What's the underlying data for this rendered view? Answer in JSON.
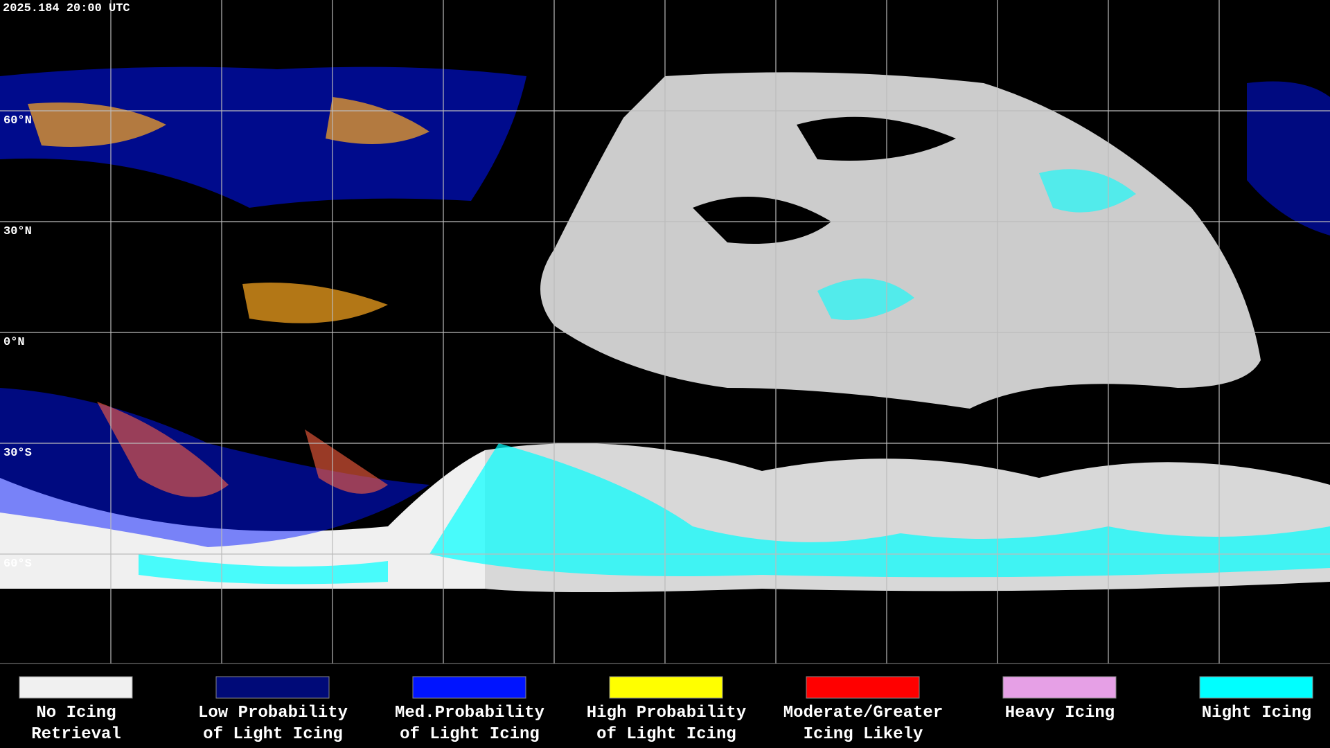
{
  "header": {
    "timestamp": "2025.184 20:00 UTC"
  },
  "latitude_labels": [
    "60°N",
    "30°N",
    "0°N",
    "30°S",
    "60°S"
  ],
  "legend": [
    {
      "lines": [
        "No Icing",
        "Retrieval"
      ],
      "color": "#f0f0f0"
    },
    {
      "lines": [
        "Low Probability",
        "of Light Icing"
      ],
      "color": "#000a78"
    },
    {
      "lines": [
        "Med.Probability",
        "of Light Icing"
      ],
      "color": "#0014ff"
    },
    {
      "lines": [
        "High Probability",
        "of Light Icing"
      ],
      "color": "#ffff00"
    },
    {
      "lines": [
        "Moderate/Greater",
        "Icing Likely"
      ],
      "color": "#ff0000"
    },
    {
      "lines": [
        "Heavy Icing"
      ],
      "color": "#e6a0e6"
    },
    {
      "lines": [
        "Night Icing"
      ],
      "color": "#00ffff"
    }
  ]
}
